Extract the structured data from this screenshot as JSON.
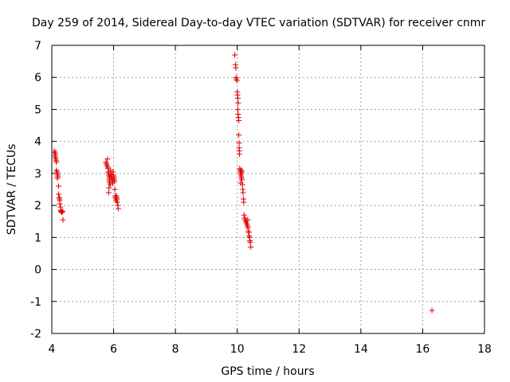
{
  "chart_data": {
    "type": "scatter",
    "title": "Day 259 of 2014, Sidereal Day-to-day VTEC variation (SDTVAR) for receiver cnmr",
    "xlabel": "GPS time / hours",
    "ylabel": "SDTVAR / TECUs",
    "xlim": [
      4,
      18
    ],
    "ylim": [
      -2,
      7
    ],
    "xticks": [
      4,
      6,
      8,
      10,
      12,
      14,
      16,
      18
    ],
    "yticks": [
      -2,
      -1,
      0,
      1,
      2,
      3,
      4,
      5,
      6,
      7
    ],
    "grid": true,
    "marker": "plus",
    "color": "#e00000",
    "series": [
      {
        "name": "SDTVAR",
        "points": [
          [
            4.08,
            3.7
          ],
          [
            4.1,
            3.65
          ],
          [
            4.1,
            3.55
          ],
          [
            4.12,
            3.5
          ],
          [
            4.13,
            3.45
          ],
          [
            4.14,
            3.4
          ],
          [
            4.15,
            3.35
          ],
          [
            4.12,
            3.6
          ],
          [
            4.15,
            3.1
          ],
          [
            4.17,
            3.05
          ],
          [
            4.18,
            3.0
          ],
          [
            4.19,
            2.95
          ],
          [
            4.2,
            2.9
          ],
          [
            4.18,
            2.85
          ],
          [
            4.22,
            2.6
          ],
          [
            4.22,
            2.35
          ],
          [
            4.24,
            2.25
          ],
          [
            4.25,
            2.2
          ],
          [
            4.26,
            2.15
          ],
          [
            4.26,
            2.05
          ],
          [
            4.28,
            1.95
          ],
          [
            4.29,
            1.85
          ],
          [
            4.3,
            1.82
          ],
          [
            4.31,
            1.8
          ],
          [
            4.33,
            1.78
          ],
          [
            4.35,
            1.82
          ],
          [
            4.36,
            1.55
          ],
          [
            5.75,
            3.35
          ],
          [
            5.77,
            3.3
          ],
          [
            5.78,
            3.25
          ],
          [
            5.8,
            3.45
          ],
          [
            5.81,
            3.2
          ],
          [
            5.82,
            3.15
          ],
          [
            5.83,
            3.05
          ],
          [
            5.84,
            3.0
          ],
          [
            5.85,
            2.95
          ],
          [
            5.86,
            2.9
          ],
          [
            5.86,
            2.8
          ],
          [
            5.87,
            2.75
          ],
          [
            5.88,
            2.7
          ],
          [
            5.89,
            2.65
          ],
          [
            5.88,
            2.85
          ],
          [
            5.9,
            3.1
          ],
          [
            5.91,
            3.0
          ],
          [
            5.92,
            2.95
          ],
          [
            5.93,
            2.9
          ],
          [
            5.94,
            2.85
          ],
          [
            5.95,
            2.8
          ],
          [
            5.96,
            2.75
          ],
          [
            5.97,
            2.7
          ],
          [
            5.98,
            3.05
          ],
          [
            5.99,
            2.95
          ],
          [
            6.0,
            2.9
          ],
          [
            6.01,
            2.85
          ],
          [
            6.02,
            2.8
          ],
          [
            6.03,
            2.75
          ],
          [
            6.04,
            2.5
          ],
          [
            6.05,
            2.3
          ],
          [
            6.06,
            2.25
          ],
          [
            6.07,
            2.2
          ],
          [
            6.08,
            2.15
          ],
          [
            6.09,
            2.3
          ],
          [
            6.1,
            2.25
          ],
          [
            6.11,
            2.2
          ],
          [
            6.12,
            2.1
          ],
          [
            6.14,
            2.0
          ],
          [
            6.15,
            1.9
          ],
          [
            5.85,
            2.55
          ],
          [
            5.84,
            2.4
          ],
          [
            9.92,
            6.7
          ],
          [
            9.94,
            6.4
          ],
          [
            9.95,
            6.3
          ],
          [
            9.96,
            6.0
          ],
          [
            9.97,
            5.95
          ],
          [
            9.99,
            5.9
          ],
          [
            10.0,
            5.55
          ],
          [
            10.01,
            5.45
          ],
          [
            10.02,
            5.35
          ],
          [
            10.03,
            5.2
          ],
          [
            10.02,
            5.0
          ],
          [
            10.03,
            4.85
          ],
          [
            10.04,
            4.75
          ],
          [
            10.05,
            4.65
          ],
          [
            10.05,
            4.2
          ],
          [
            10.06,
            3.95
          ],
          [
            10.06,
            3.8
          ],
          [
            10.07,
            3.7
          ],
          [
            10.07,
            3.6
          ],
          [
            10.08,
            3.15
          ],
          [
            10.09,
            3.1
          ],
          [
            10.1,
            3.05
          ],
          [
            10.11,
            3.0
          ],
          [
            10.12,
            2.95
          ],
          [
            10.13,
            2.9
          ],
          [
            10.14,
            2.85
          ],
          [
            10.15,
            2.8
          ],
          [
            10.16,
            3.05
          ],
          [
            10.17,
            2.65
          ],
          [
            10.18,
            2.5
          ],
          [
            10.19,
            2.4
          ],
          [
            10.2,
            2.2
          ],
          [
            10.21,
            2.1
          ],
          [
            10.22,
            1.7
          ],
          [
            10.24,
            1.6
          ],
          [
            10.26,
            1.55
          ],
          [
            10.28,
            1.5
          ],
          [
            10.3,
            1.45
          ],
          [
            10.32,
            1.4
          ],
          [
            10.33,
            1.35
          ],
          [
            10.34,
            1.55
          ],
          [
            10.35,
            1.3
          ],
          [
            10.36,
            1.2
          ],
          [
            10.37,
            1.15
          ],
          [
            10.38,
            1.05
          ],
          [
            10.4,
            1.0
          ],
          [
            10.41,
            0.9
          ],
          [
            10.42,
            0.85
          ],
          [
            10.44,
            0.7
          ],
          [
            10.11,
            2.7
          ],
          [
            10.13,
            3.1
          ],
          [
            16.3,
            -1.28
          ]
        ]
      }
    ]
  }
}
